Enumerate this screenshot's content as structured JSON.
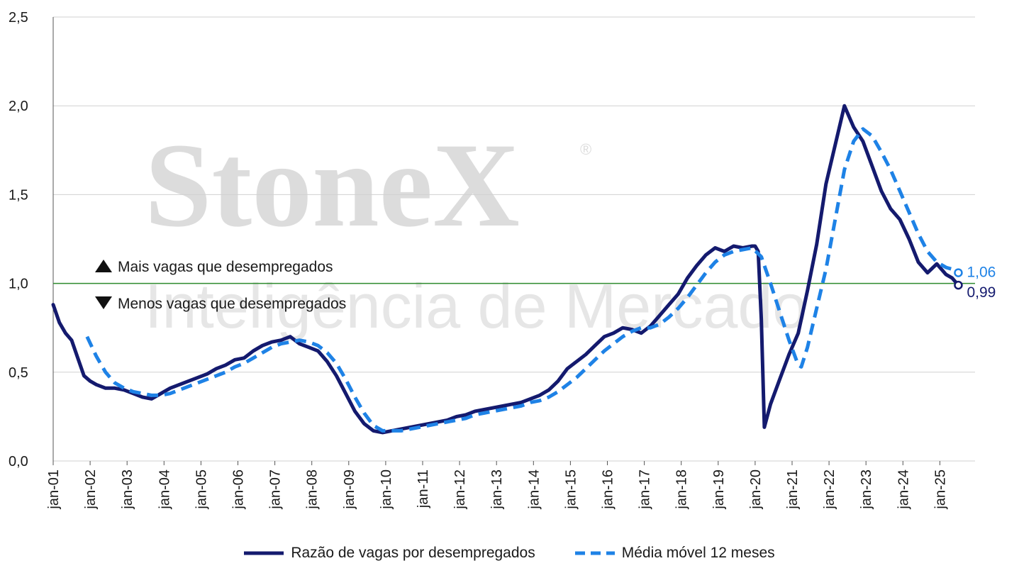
{
  "watermark": {
    "brand": "StoneX",
    "registered": "®",
    "subtitle": "Inteligência de Mercado"
  },
  "annotations": {
    "above": "Mais vagas que desempregados",
    "below": "Menos vagas que desempregados"
  },
  "legend": {
    "series1": "Razão de vagas por desempregados",
    "series2": "Média móvel 12 meses"
  },
  "end_labels": {
    "ratio": "0,99",
    "moving_avg": "1,06"
  },
  "colors": {
    "ratio": "#141a6e",
    "moving_avg": "#1e82e6",
    "reference_line": "#2e8b2e",
    "grid": "#d0d0d0"
  },
  "chart_data": {
    "type": "line",
    "title": "",
    "xlabel": "",
    "ylabel": "",
    "ylim": [
      0,
      2.5
    ],
    "y_ticks": [
      "0,0",
      "0,5",
      "1,0",
      "1,5",
      "2,0",
      "2,5"
    ],
    "y_tick_values": [
      0,
      0.5,
      1.0,
      1.5,
      2.0,
      2.5
    ],
    "x_range": [
      "2001-01",
      "2025-07"
    ],
    "x_ticks": [
      "jan-01",
      "jan-02",
      "jan-03",
      "jan-04",
      "jan-05",
      "jan-06",
      "jan-07",
      "jan-08",
      "jan-09",
      "jan-10",
      "jan-11",
      "jan-12",
      "jan-13",
      "jan-14",
      "jan-15",
      "jan-16",
      "jan-17",
      "jan-18",
      "jan-19",
      "jan-20",
      "jan-21",
      "jan-22",
      "jan-23",
      "jan-24",
      "jan-25"
    ],
    "reference_line": 1.0,
    "grid": true,
    "legend_position": "bottom",
    "series": [
      {
        "name": "Razão de vagas por desempregados",
        "style": "solid",
        "points": [
          [
            "2001-01",
            0.88
          ],
          [
            "2001-03",
            0.78
          ],
          [
            "2001-05",
            0.72
          ],
          [
            "2001-07",
            0.68
          ],
          [
            "2001-09",
            0.58
          ],
          [
            "2001-11",
            0.48
          ],
          [
            "2002-01",
            0.45
          ],
          [
            "2002-03",
            0.43
          ],
          [
            "2002-06",
            0.41
          ],
          [
            "2002-09",
            0.41
          ],
          [
            "2002-12",
            0.4
          ],
          [
            "2003-03",
            0.38
          ],
          [
            "2003-06",
            0.36
          ],
          [
            "2003-09",
            0.35
          ],
          [
            "2003-12",
            0.38
          ],
          [
            "2004-03",
            0.41
          ],
          [
            "2004-06",
            0.43
          ],
          [
            "2004-09",
            0.45
          ],
          [
            "2004-12",
            0.47
          ],
          [
            "2005-03",
            0.49
          ],
          [
            "2005-06",
            0.52
          ],
          [
            "2005-09",
            0.54
          ],
          [
            "2005-12",
            0.57
          ],
          [
            "2006-03",
            0.58
          ],
          [
            "2006-06",
            0.62
          ],
          [
            "2006-09",
            0.65
          ],
          [
            "2006-12",
            0.67
          ],
          [
            "2007-03",
            0.68
          ],
          [
            "2007-06",
            0.7
          ],
          [
            "2007-09",
            0.66
          ],
          [
            "2007-12",
            0.64
          ],
          [
            "2008-03",
            0.62
          ],
          [
            "2008-06",
            0.56
          ],
          [
            "2008-09",
            0.48
          ],
          [
            "2008-12",
            0.38
          ],
          [
            "2009-03",
            0.28
          ],
          [
            "2009-06",
            0.21
          ],
          [
            "2009-09",
            0.17
          ],
          [
            "2009-12",
            0.16
          ],
          [
            "2010-03",
            0.17
          ],
          [
            "2010-06",
            0.18
          ],
          [
            "2010-09",
            0.19
          ],
          [
            "2010-12",
            0.2
          ],
          [
            "2011-03",
            0.21
          ],
          [
            "2011-06",
            0.22
          ],
          [
            "2011-09",
            0.23
          ],
          [
            "2011-12",
            0.25
          ],
          [
            "2012-03",
            0.26
          ],
          [
            "2012-06",
            0.28
          ],
          [
            "2012-09",
            0.29
          ],
          [
            "2012-12",
            0.3
          ],
          [
            "2013-03",
            0.31
          ],
          [
            "2013-06",
            0.32
          ],
          [
            "2013-09",
            0.33
          ],
          [
            "2013-12",
            0.35
          ],
          [
            "2014-03",
            0.37
          ],
          [
            "2014-06",
            0.4
          ],
          [
            "2014-09",
            0.45
          ],
          [
            "2014-12",
            0.52
          ],
          [
            "2015-03",
            0.56
          ],
          [
            "2015-06",
            0.6
          ],
          [
            "2015-09",
            0.65
          ],
          [
            "2015-12",
            0.7
          ],
          [
            "2016-03",
            0.72
          ],
          [
            "2016-06",
            0.75
          ],
          [
            "2016-09",
            0.74
          ],
          [
            "2016-12",
            0.72
          ],
          [
            "2017-03",
            0.76
          ],
          [
            "2017-06",
            0.82
          ],
          [
            "2017-09",
            0.88
          ],
          [
            "2017-12",
            0.94
          ],
          [
            "2018-03",
            1.03
          ],
          [
            "2018-06",
            1.1
          ],
          [
            "2018-09",
            1.16
          ],
          [
            "2018-12",
            1.2
          ],
          [
            "2019-03",
            1.18
          ],
          [
            "2019-06",
            1.21
          ],
          [
            "2019-09",
            1.2
          ],
          [
            "2019-12",
            1.21
          ],
          [
            "2020-01",
            1.21
          ],
          [
            "2020-02",
            1.18
          ],
          [
            "2020-03",
            0.8
          ],
          [
            "2020-04",
            0.19
          ],
          [
            "2020-06",
            0.32
          ],
          [
            "2020-09",
            0.46
          ],
          [
            "2020-12",
            0.6
          ],
          [
            "2021-03",
            0.72
          ],
          [
            "2021-06",
            0.96
          ],
          [
            "2021-09",
            1.22
          ],
          [
            "2021-12",
            1.56
          ],
          [
            "2022-03",
            1.78
          ],
          [
            "2022-06",
            2.0
          ],
          [
            "2022-09",
            1.88
          ],
          [
            "2022-12",
            1.8
          ],
          [
            "2023-03",
            1.66
          ],
          [
            "2023-06",
            1.52
          ],
          [
            "2023-09",
            1.42
          ],
          [
            "2023-12",
            1.36
          ],
          [
            "2024-03",
            1.25
          ],
          [
            "2024-06",
            1.12
          ],
          [
            "2024-09",
            1.06
          ],
          [
            "2024-12",
            1.11
          ],
          [
            "2025-03",
            1.05
          ],
          [
            "2025-05",
            1.03
          ],
          [
            "2025-07",
            0.99
          ]
        ]
      },
      {
        "name": "Média móvel 12 meses",
        "style": "dashed",
        "points": [
          [
            "2001-12",
            0.7
          ],
          [
            "2002-03",
            0.59
          ],
          [
            "2002-06",
            0.5
          ],
          [
            "2002-09",
            0.44
          ],
          [
            "2002-12",
            0.41
          ],
          [
            "2003-03",
            0.39
          ],
          [
            "2003-06",
            0.38
          ],
          [
            "2003-09",
            0.37
          ],
          [
            "2003-12",
            0.37
          ],
          [
            "2004-03",
            0.38
          ],
          [
            "2004-06",
            0.4
          ],
          [
            "2004-09",
            0.42
          ],
          [
            "2004-12",
            0.44
          ],
          [
            "2005-03",
            0.46
          ],
          [
            "2005-06",
            0.48
          ],
          [
            "2005-09",
            0.5
          ],
          [
            "2005-12",
            0.53
          ],
          [
            "2006-03",
            0.55
          ],
          [
            "2006-06",
            0.58
          ],
          [
            "2006-09",
            0.61
          ],
          [
            "2006-12",
            0.64
          ],
          [
            "2007-03",
            0.66
          ],
          [
            "2007-06",
            0.67
          ],
          [
            "2007-09",
            0.68
          ],
          [
            "2007-12",
            0.67
          ],
          [
            "2008-03",
            0.65
          ],
          [
            "2008-06",
            0.61
          ],
          [
            "2008-09",
            0.55
          ],
          [
            "2008-12",
            0.46
          ],
          [
            "2009-03",
            0.36
          ],
          [
            "2009-06",
            0.27
          ],
          [
            "2009-09",
            0.2
          ],
          [
            "2009-12",
            0.17
          ],
          [
            "2010-03",
            0.17
          ],
          [
            "2010-06",
            0.17
          ],
          [
            "2010-09",
            0.18
          ],
          [
            "2010-12",
            0.19
          ],
          [
            "2011-03",
            0.2
          ],
          [
            "2011-06",
            0.21
          ],
          [
            "2011-09",
            0.22
          ],
          [
            "2011-12",
            0.23
          ],
          [
            "2012-03",
            0.24
          ],
          [
            "2012-06",
            0.26
          ],
          [
            "2012-09",
            0.27
          ],
          [
            "2012-12",
            0.28
          ],
          [
            "2013-03",
            0.29
          ],
          [
            "2013-06",
            0.3
          ],
          [
            "2013-09",
            0.31
          ],
          [
            "2013-12",
            0.33
          ],
          [
            "2014-03",
            0.34
          ],
          [
            "2014-06",
            0.36
          ],
          [
            "2014-09",
            0.39
          ],
          [
            "2014-12",
            0.43
          ],
          [
            "2015-03",
            0.47
          ],
          [
            "2015-06",
            0.52
          ],
          [
            "2015-09",
            0.57
          ],
          [
            "2015-12",
            0.62
          ],
          [
            "2016-03",
            0.66
          ],
          [
            "2016-06",
            0.7
          ],
          [
            "2016-09",
            0.73
          ],
          [
            "2016-12",
            0.75
          ],
          [
            "2017-03",
            0.75
          ],
          [
            "2017-06",
            0.77
          ],
          [
            "2017-09",
            0.81
          ],
          [
            "2017-12",
            0.86
          ],
          [
            "2018-03",
            0.92
          ],
          [
            "2018-06",
            0.99
          ],
          [
            "2018-09",
            1.06
          ],
          [
            "2018-12",
            1.12
          ],
          [
            "2019-03",
            1.16
          ],
          [
            "2019-06",
            1.18
          ],
          [
            "2019-09",
            1.19
          ],
          [
            "2019-12",
            1.2
          ],
          [
            "2020-03",
            1.15
          ],
          [
            "2020-06",
            1.0
          ],
          [
            "2020-09",
            0.84
          ],
          [
            "2020-12",
            0.68
          ],
          [
            "2021-03",
            0.54
          ],
          [
            "2021-04",
            0.53
          ],
          [
            "2021-06",
            0.64
          ],
          [
            "2021-09",
            0.86
          ],
          [
            "2021-12",
            1.08
          ],
          [
            "2022-03",
            1.36
          ],
          [
            "2022-06",
            1.64
          ],
          [
            "2022-09",
            1.8
          ],
          [
            "2022-12",
            1.87
          ],
          [
            "2023-03",
            1.83
          ],
          [
            "2023-06",
            1.74
          ],
          [
            "2023-09",
            1.64
          ],
          [
            "2023-12",
            1.52
          ],
          [
            "2024-03",
            1.4
          ],
          [
            "2024-06",
            1.28
          ],
          [
            "2024-09",
            1.18
          ],
          [
            "2024-12",
            1.12
          ],
          [
            "2025-03",
            1.09
          ],
          [
            "2025-05",
            1.08
          ],
          [
            "2025-07",
            1.06
          ]
        ]
      }
    ]
  }
}
